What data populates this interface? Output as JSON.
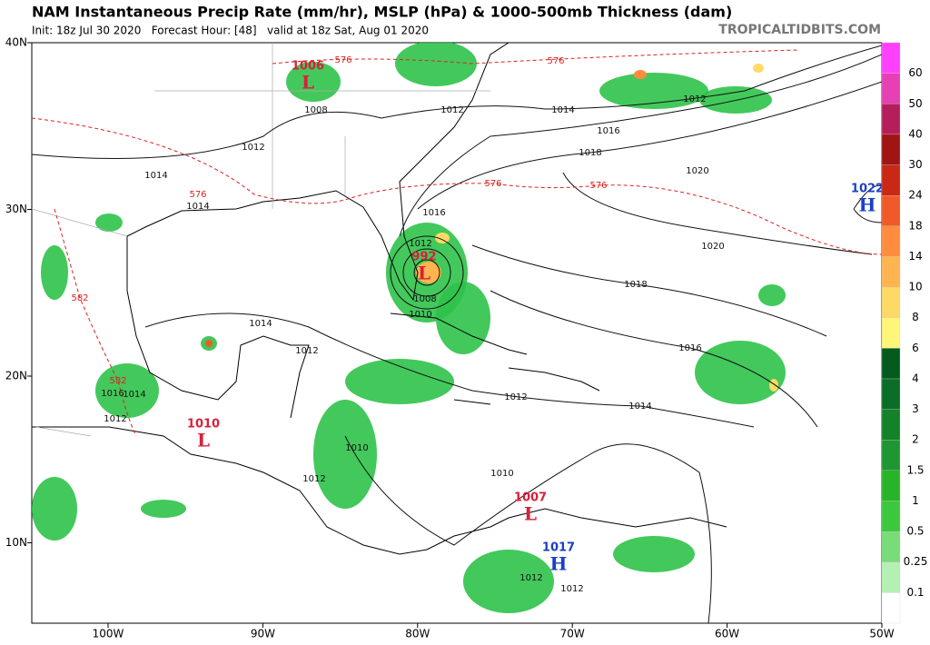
{
  "header": {
    "title": "NAM Instantaneous Precip Rate (mm/hr), MSLP (hPa) & 1000-500mb Thickness (dam)",
    "subtitle": "Init: 18z Jul 30 2020   Forecast Hour: [48]   valid at 18z Sat, Aug 01 2020",
    "watermark": "TROPICALTIDBITS.COM"
  },
  "map": {
    "lat_labels": [
      "40N",
      "30N",
      "20N",
      "10N"
    ],
    "lon_labels": [
      "100W",
      "90W",
      "80W",
      "70W",
      "60W",
      "50W"
    ],
    "pressure_centers": [
      {
        "value": "1006",
        "letter": "L"
      },
      {
        "value": "992",
        "letter": "L"
      },
      {
        "value": "1010",
        "letter": "L"
      },
      {
        "value": "1007",
        "letter": "L"
      },
      {
        "value": "1017",
        "letter": "H"
      },
      {
        "value": "1022",
        "letter": "H"
      }
    ],
    "isobar_labels": [
      "1008",
      "1012",
      "1014",
      "1012",
      "1016",
      "1018",
      "1020",
      "1020",
      "1018",
      "1016",
      "1014",
      "1012",
      "1014",
      "1014",
      "1014",
      "1012",
      "1016",
      "1012",
      "1008",
      "1010",
      "1012",
      "1010",
      "1012",
      "1010",
      "1012",
      "1016",
      "1014",
      "1012",
      "1012"
    ],
    "thickness_labels": [
      "576",
      "576",
      "576",
      "576",
      "576",
      "582",
      "582"
    ]
  },
  "colorbar": {
    "labels": [
      "0.1",
      "0.25",
      "0.5",
      "1",
      "1.5",
      "2",
      "3",
      "4",
      "6",
      "8",
      "10",
      "14",
      "18",
      "24",
      "30",
      "40",
      "50",
      "60"
    ],
    "colors": [
      "#ffffff",
      "#b4f0b4",
      "#78dc78",
      "#3cc83c",
      "#28b428",
      "#1e9632",
      "#148228",
      "#0a6e28",
      "#055a1e",
      "#fff578",
      "#ffd966",
      "#ffb450",
      "#ff8c3c",
      "#f05a28",
      "#c82814",
      "#a01414",
      "#b41e5a",
      "#e640b4",
      "#ff40ff"
    ]
  }
}
